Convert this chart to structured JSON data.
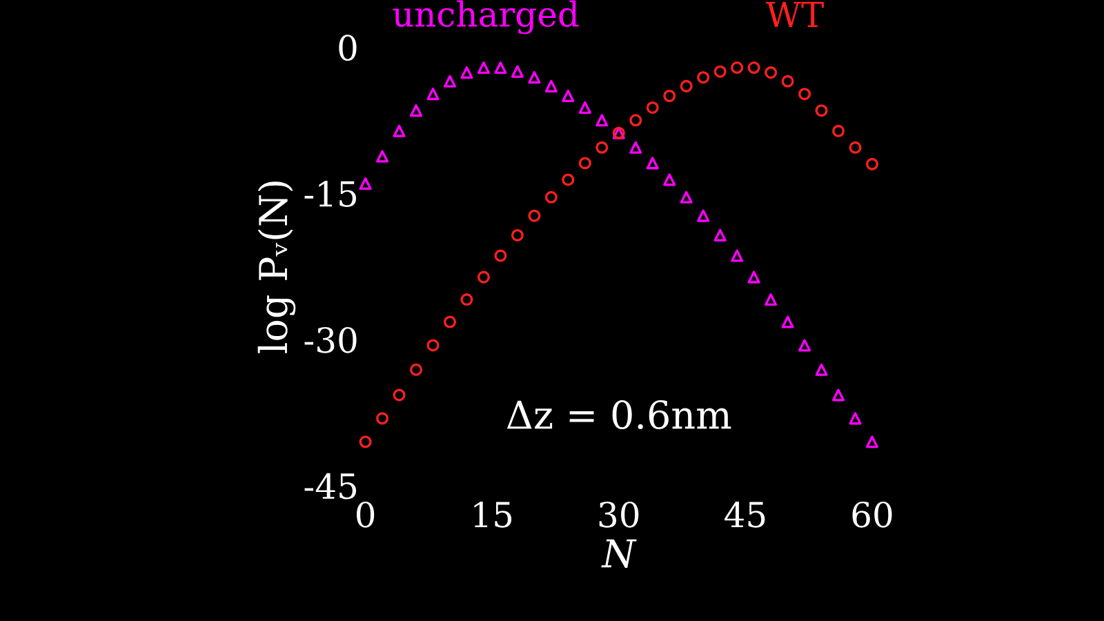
{
  "chart_data": {
    "type": "scatter",
    "xlabel": "N",
    "ylabel": "log Pᵥ(N)",
    "x": [
      0,
      2,
      4,
      6,
      8,
      10,
      12,
      14,
      16,
      18,
      20,
      22,
      24,
      26,
      28,
      30,
      32,
      34,
      36,
      38,
      40,
      42,
      44,
      46,
      48,
      50,
      52,
      54,
      56,
      58,
      60
    ],
    "series": [
      {
        "name": "uncharged",
        "color": "#ff00ff",
        "marker": "triangle",
        "values": [
          -14,
          -11.2,
          -8.6,
          -6.5,
          -4.8,
          -3.5,
          -2.6,
          -2.1,
          -2.1,
          -2.5,
          -3.1,
          -4,
          -5,
          -6.2,
          -7.5,
          -8.8,
          -10.3,
          -11.9,
          -13.6,
          -15.4,
          -17.3,
          -19.3,
          -21.4,
          -23.6,
          -25.9,
          -28.2,
          -30.6,
          -33.1,
          -35.7,
          -38.1,
          -40.5
        ]
      },
      {
        "name": "WT",
        "color": "#ff2020",
        "marker": "circle",
        "values": [
          -40.5,
          -38.1,
          -35.7,
          -33.1,
          -30.6,
          -28.2,
          -25.9,
          -23.6,
          -21.4,
          -19.3,
          -17.3,
          -15.4,
          -13.6,
          -11.9,
          -10.3,
          -8.8,
          -7.5,
          -6.2,
          -5,
          -4,
          -3.1,
          -2.5,
          -2.1,
          -2.1,
          -2.6,
          -3.5,
          -4.8,
          -6.5,
          -8.6,
          -10.3,
          -12
        ]
      }
    ],
    "xlim": [
      0,
      60
    ],
    "xticks": [
      0,
      15,
      30,
      45,
      60
    ],
    "ylim": [
      -45,
      0
    ],
    "yticks": [
      0,
      -15,
      -30,
      -45
    ],
    "annotations": [
      "Δz = 0.6nm"
    ],
    "grid": false
  }
}
